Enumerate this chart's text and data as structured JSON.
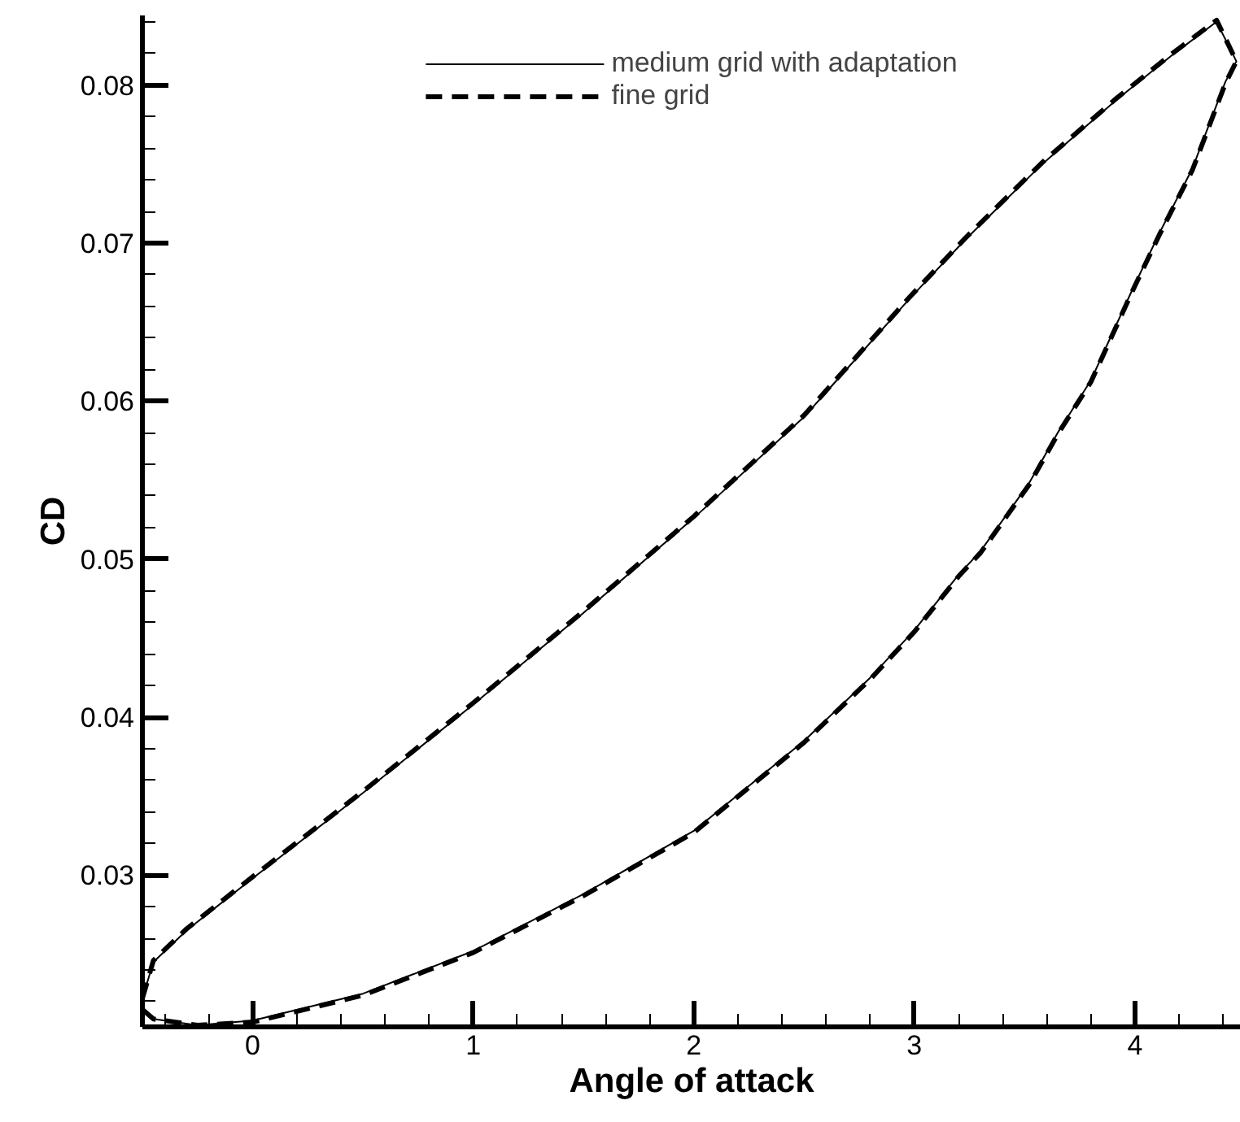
{
  "chart_data": {
    "type": "line",
    "xlabel": "Angle of attack",
    "ylabel": "CD",
    "xlim": [
      -0.5,
      4.48
    ],
    "ylim": [
      0.0204,
      0.0844
    ],
    "xticks": [
      0,
      1,
      2,
      3,
      4
    ],
    "yticks": [
      0.03,
      0.04,
      0.05,
      0.06,
      0.07,
      0.08
    ],
    "grid": false,
    "legend": "top",
    "marker": "none",
    "series": [
      {
        "name": "medium grid with adaptation",
        "color": "#000000",
        "line_style": "solid",
        "x": [
          -0.5,
          -0.45,
          -0.3,
          0,
          0.5,
          1,
          1.5,
          2,
          2.5,
          2.98,
          3.23,
          3.58,
          3.92,
          4.17,
          4.37,
          4.46,
          4.41,
          4.26,
          4.11,
          3.99,
          3.8,
          3.65,
          3.52,
          3.3,
          3.2,
          3.0,
          2.8,
          2.5,
          2.0,
          1.5,
          1.0,
          0.5,
          0,
          -0.25,
          -0.45,
          -0.5
        ],
        "values": [
          0.0222,
          0.0245,
          0.0265,
          0.0298,
          0.0352,
          0.0408,
          0.0466,
          0.0526,
          0.059,
          0.0665,
          0.0702,
          0.075,
          0.0791,
          0.0819,
          0.084,
          0.0815,
          0.0802,
          0.0747,
          0.0706,
          0.0671,
          0.0613,
          0.058,
          0.0548,
          0.0505,
          0.049,
          0.0455,
          0.0425,
          0.0385,
          0.0328,
          0.0288,
          0.0252,
          0.0225,
          0.0208,
          0.0205,
          0.0209,
          0.0215
        ]
      },
      {
        "name": "fine grid",
        "color": "#000000",
        "line_style": "dashed",
        "x": [
          -0.5,
          -0.45,
          -0.3,
          0,
          0.5,
          1,
          1.5,
          2,
          2.5,
          2.98,
          3.23,
          3.58,
          3.92,
          4.17,
          4.37,
          4.46,
          4.41,
          4.26,
          4.11,
          3.99,
          3.8,
          3.65,
          3.52,
          3.3,
          3.2,
          3.0,
          2.8,
          2.5,
          2.0,
          1.5,
          1.0,
          0.5,
          0,
          -0.25,
          -0.45,
          -0.5
        ],
        "values": [
          0.0222,
          0.0246,
          0.0266,
          0.0299,
          0.0353,
          0.0409,
          0.0467,
          0.0527,
          0.0591,
          0.0666,
          0.0703,
          0.0751,
          0.0792,
          0.082,
          0.0841,
          0.0815,
          0.0801,
          0.0746,
          0.0705,
          0.067,
          0.0612,
          0.0579,
          0.0547,
          0.0504,
          0.0489,
          0.0454,
          0.0424,
          0.0384,
          0.0327,
          0.0287,
          0.0251,
          0.0224,
          0.0207,
          0.0205,
          0.0209,
          0.0215
        ]
      }
    ]
  }
}
